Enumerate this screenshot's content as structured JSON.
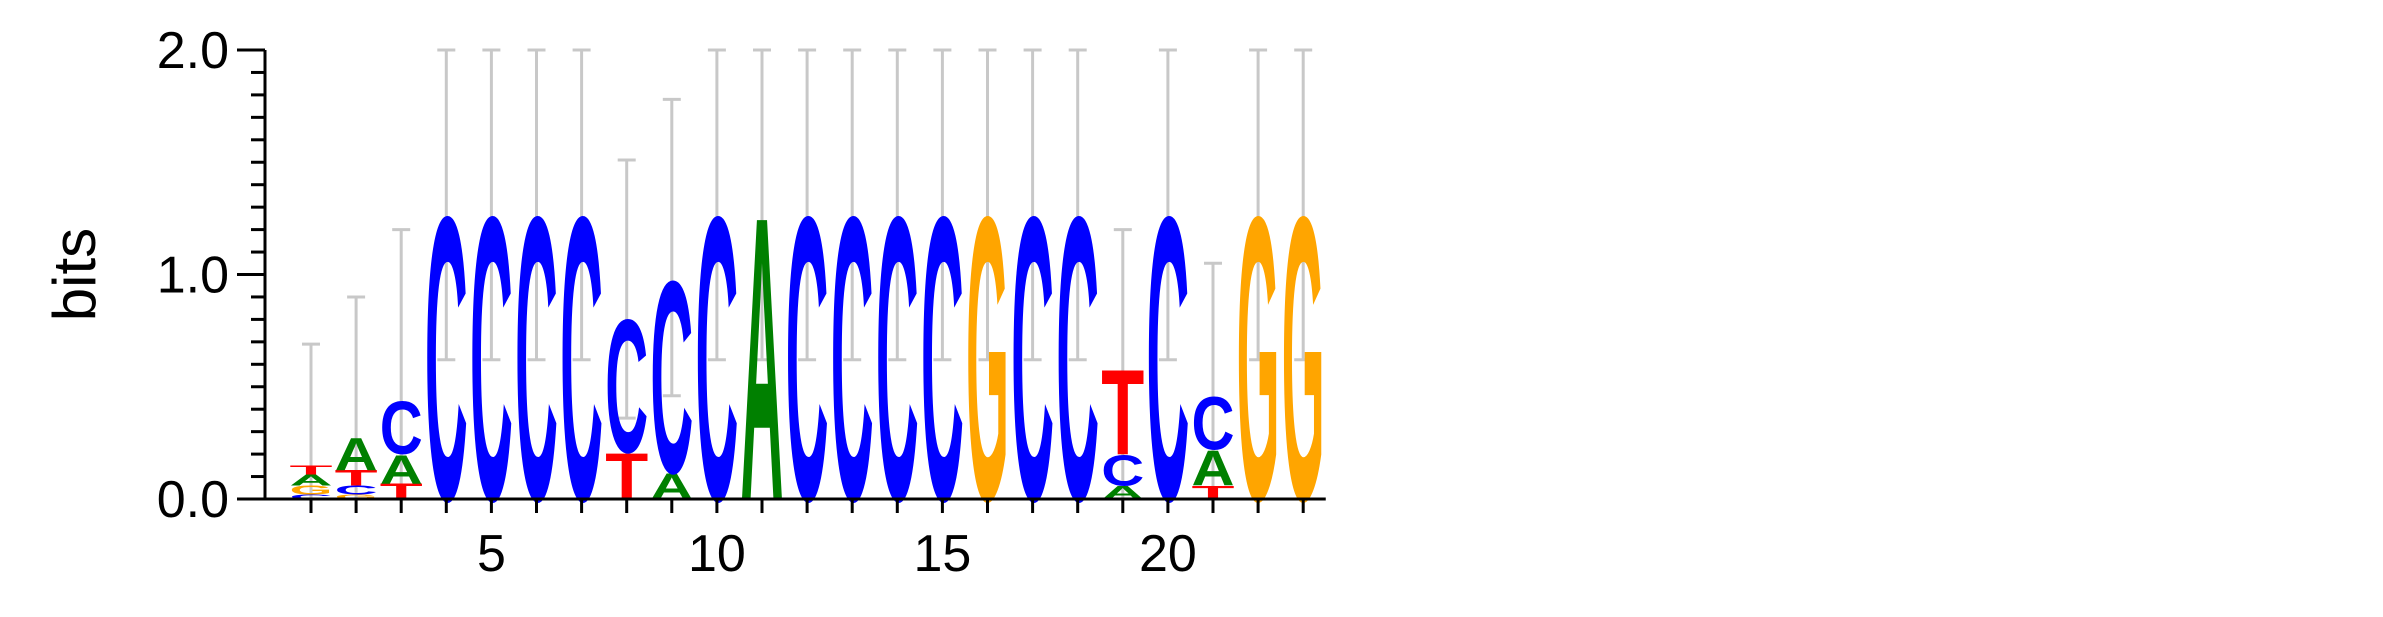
{
  "chart_data": {
    "type": "sequence-logo",
    "title": "",
    "xlabel": "",
    "ylabel": "bits",
    "ylim": [
      0,
      2
    ],
    "y_ticks": [
      "0.0",
      "1.0",
      "2.0"
    ],
    "x_ticks": [
      "5",
      "10",
      "15",
      "20"
    ],
    "x_tick_positions": [
      5,
      10,
      15,
      20
    ],
    "grid": false,
    "legend": "none",
    "colors": {
      "A": "#008000",
      "C": "#0000ff",
      "G": "#ffa500",
      "T": "#ff0000"
    },
    "error_bar_color": "#c8c8c8",
    "positions": [
      {
        "pos": 1,
        "stack": [
          [
            "C",
            0.02
          ],
          [
            "G",
            0.04
          ],
          [
            "A",
            0.05
          ],
          [
            "T",
            0.04
          ]
        ],
        "err": [
          0.0,
          0.69
        ]
      },
      {
        "pos": 2,
        "stack": [
          [
            "G",
            0.02
          ],
          [
            "C",
            0.04
          ],
          [
            "T",
            0.07
          ],
          [
            "A",
            0.15
          ]
        ],
        "err": [
          0.0,
          0.9
        ]
      },
      {
        "pos": 3,
        "stack": [
          [
            "T",
            0.07
          ],
          [
            "A",
            0.13
          ],
          [
            "C",
            0.24
          ]
        ],
        "err": [
          0.0,
          1.2
        ]
      },
      {
        "pos": 4,
        "stack": [
          [
            "C",
            1.3
          ]
        ],
        "err": [
          0.62,
          2.0
        ]
      },
      {
        "pos": 5,
        "stack": [
          [
            "C",
            1.3
          ]
        ],
        "err": [
          0.62,
          2.0
        ]
      },
      {
        "pos": 6,
        "stack": [
          [
            "C",
            1.3
          ]
        ],
        "err": [
          0.62,
          2.0
        ]
      },
      {
        "pos": 7,
        "stack": [
          [
            "C",
            1.3
          ]
        ],
        "err": [
          0.62,
          2.0
        ]
      },
      {
        "pos": 8,
        "stack": [
          [
            "T",
            0.21
          ],
          [
            "C",
            0.61
          ]
        ],
        "err": [
          0.36,
          1.51
        ]
      },
      {
        "pos": 9,
        "stack": [
          [
            "A",
            0.12
          ],
          [
            "C",
            0.88
          ]
        ],
        "err": [
          0.46,
          1.78
        ]
      },
      {
        "pos": 10,
        "stack": [
          [
            "C",
            1.3
          ]
        ],
        "err": [
          0.62,
          2.0
        ]
      },
      {
        "pos": 11,
        "stack": [
          [
            "A",
            1.3
          ]
        ],
        "err": [
          0.62,
          2.0
        ]
      },
      {
        "pos": 12,
        "stack": [
          [
            "C",
            1.3
          ]
        ],
        "err": [
          0.62,
          2.0
        ]
      },
      {
        "pos": 13,
        "stack": [
          [
            "C",
            1.3
          ]
        ],
        "err": [
          0.62,
          2.0
        ]
      },
      {
        "pos": 14,
        "stack": [
          [
            "C",
            1.3
          ]
        ],
        "err": [
          0.62,
          2.0
        ]
      },
      {
        "pos": 15,
        "stack": [
          [
            "C",
            1.3
          ]
        ],
        "err": [
          0.62,
          2.0
        ]
      },
      {
        "pos": 16,
        "stack": [
          [
            "G",
            1.3
          ]
        ],
        "err": [
          0.62,
          2.0
        ]
      },
      {
        "pos": 17,
        "stack": [
          [
            "C",
            1.3
          ]
        ],
        "err": [
          0.62,
          2.0
        ]
      },
      {
        "pos": 18,
        "stack": [
          [
            "C",
            1.3
          ]
        ],
        "err": [
          0.62,
          2.0
        ]
      },
      {
        "pos": 19,
        "stack": [
          [
            "A",
            0.06
          ],
          [
            "C",
            0.14
          ],
          [
            "T",
            0.39
          ]
        ],
        "err": [
          0.0,
          1.2
        ]
      },
      {
        "pos": 20,
        "stack": [
          [
            "C",
            1.3
          ]
        ],
        "err": [
          0.62,
          2.0
        ]
      },
      {
        "pos": 21,
        "stack": [
          [
            "T",
            0.06
          ],
          [
            "A",
            0.16
          ],
          [
            "C",
            0.24
          ]
        ],
        "err": [
          0.0,
          1.05
        ]
      },
      {
        "pos": 22,
        "stack": [
          [
            "G",
            1.3
          ]
        ],
        "err": [
          0.62,
          2.0
        ]
      },
      {
        "pos": 23,
        "stack": [
          [
            "G",
            1.3
          ]
        ],
        "err": [
          0.62,
          2.0
        ]
      }
    ]
  }
}
